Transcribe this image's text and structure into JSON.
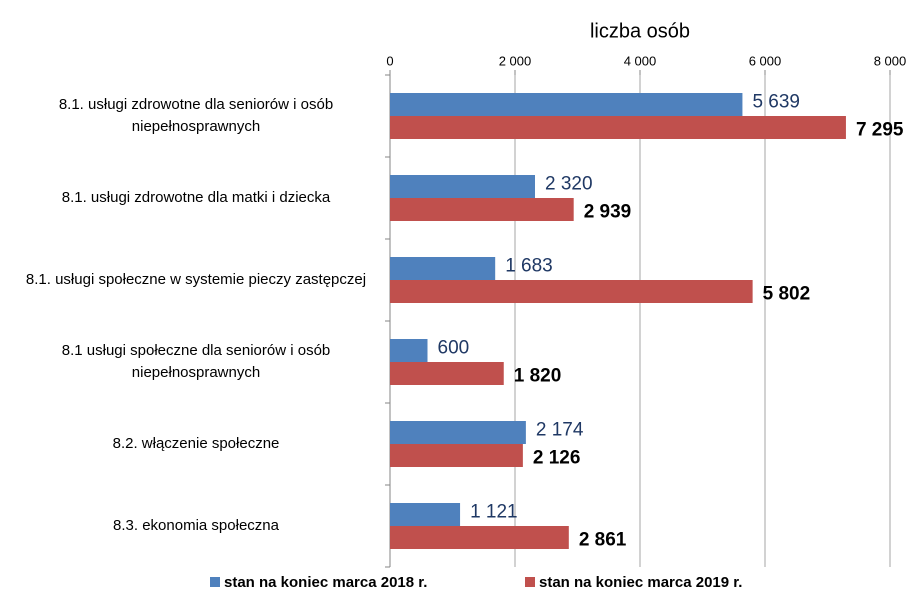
{
  "chart_data": {
    "type": "hbar",
    "xlabel": "liczba osób",
    "categories": [
      "8.1. usługi zdrowotne dla seniorów i osób niepełnosprawnych",
      "8.1. usługi zdrowotne dla matki i dziecka",
      "8.1. usługi społeczne w systemie pieczy zastępczej",
      "8.1 usługi społeczne dla seniorów i osób niepełnosprawnych",
      "8.2. włączenie społeczne",
      "8.3. ekonomia społeczna"
    ],
    "series": [
      {
        "name": "stan na koniec marca 2018 r.",
        "color": "#4f81bd",
        "values": [
          5639,
          2320,
          1683,
          600,
          2174,
          1121
        ],
        "value_labels": [
          "5 639",
          "2 320",
          "1 683",
          "600",
          "2 174",
          "1 121"
        ]
      },
      {
        "name": "stan na koniec marca 2019 r.",
        "color": "#c0504d",
        "values": [
          7295,
          2939,
          5802,
          1820,
          2126,
          2861
        ],
        "value_labels": [
          "7 295",
          "2 939",
          "5 802",
          "1 820",
          "2 126",
          "2 861"
        ]
      }
    ],
    "xlim": [
      0,
      8000
    ],
    "xticks": [
      0,
      {
        "value": 2000,
        "label": "2 000"
      },
      {
        "value": 4000,
        "label": "4 000"
      },
      {
        "value": 6000,
        "label": "6 000"
      },
      {
        "value": 8000,
        "label": "8 000"
      }
    ],
    "grid": true
  }
}
